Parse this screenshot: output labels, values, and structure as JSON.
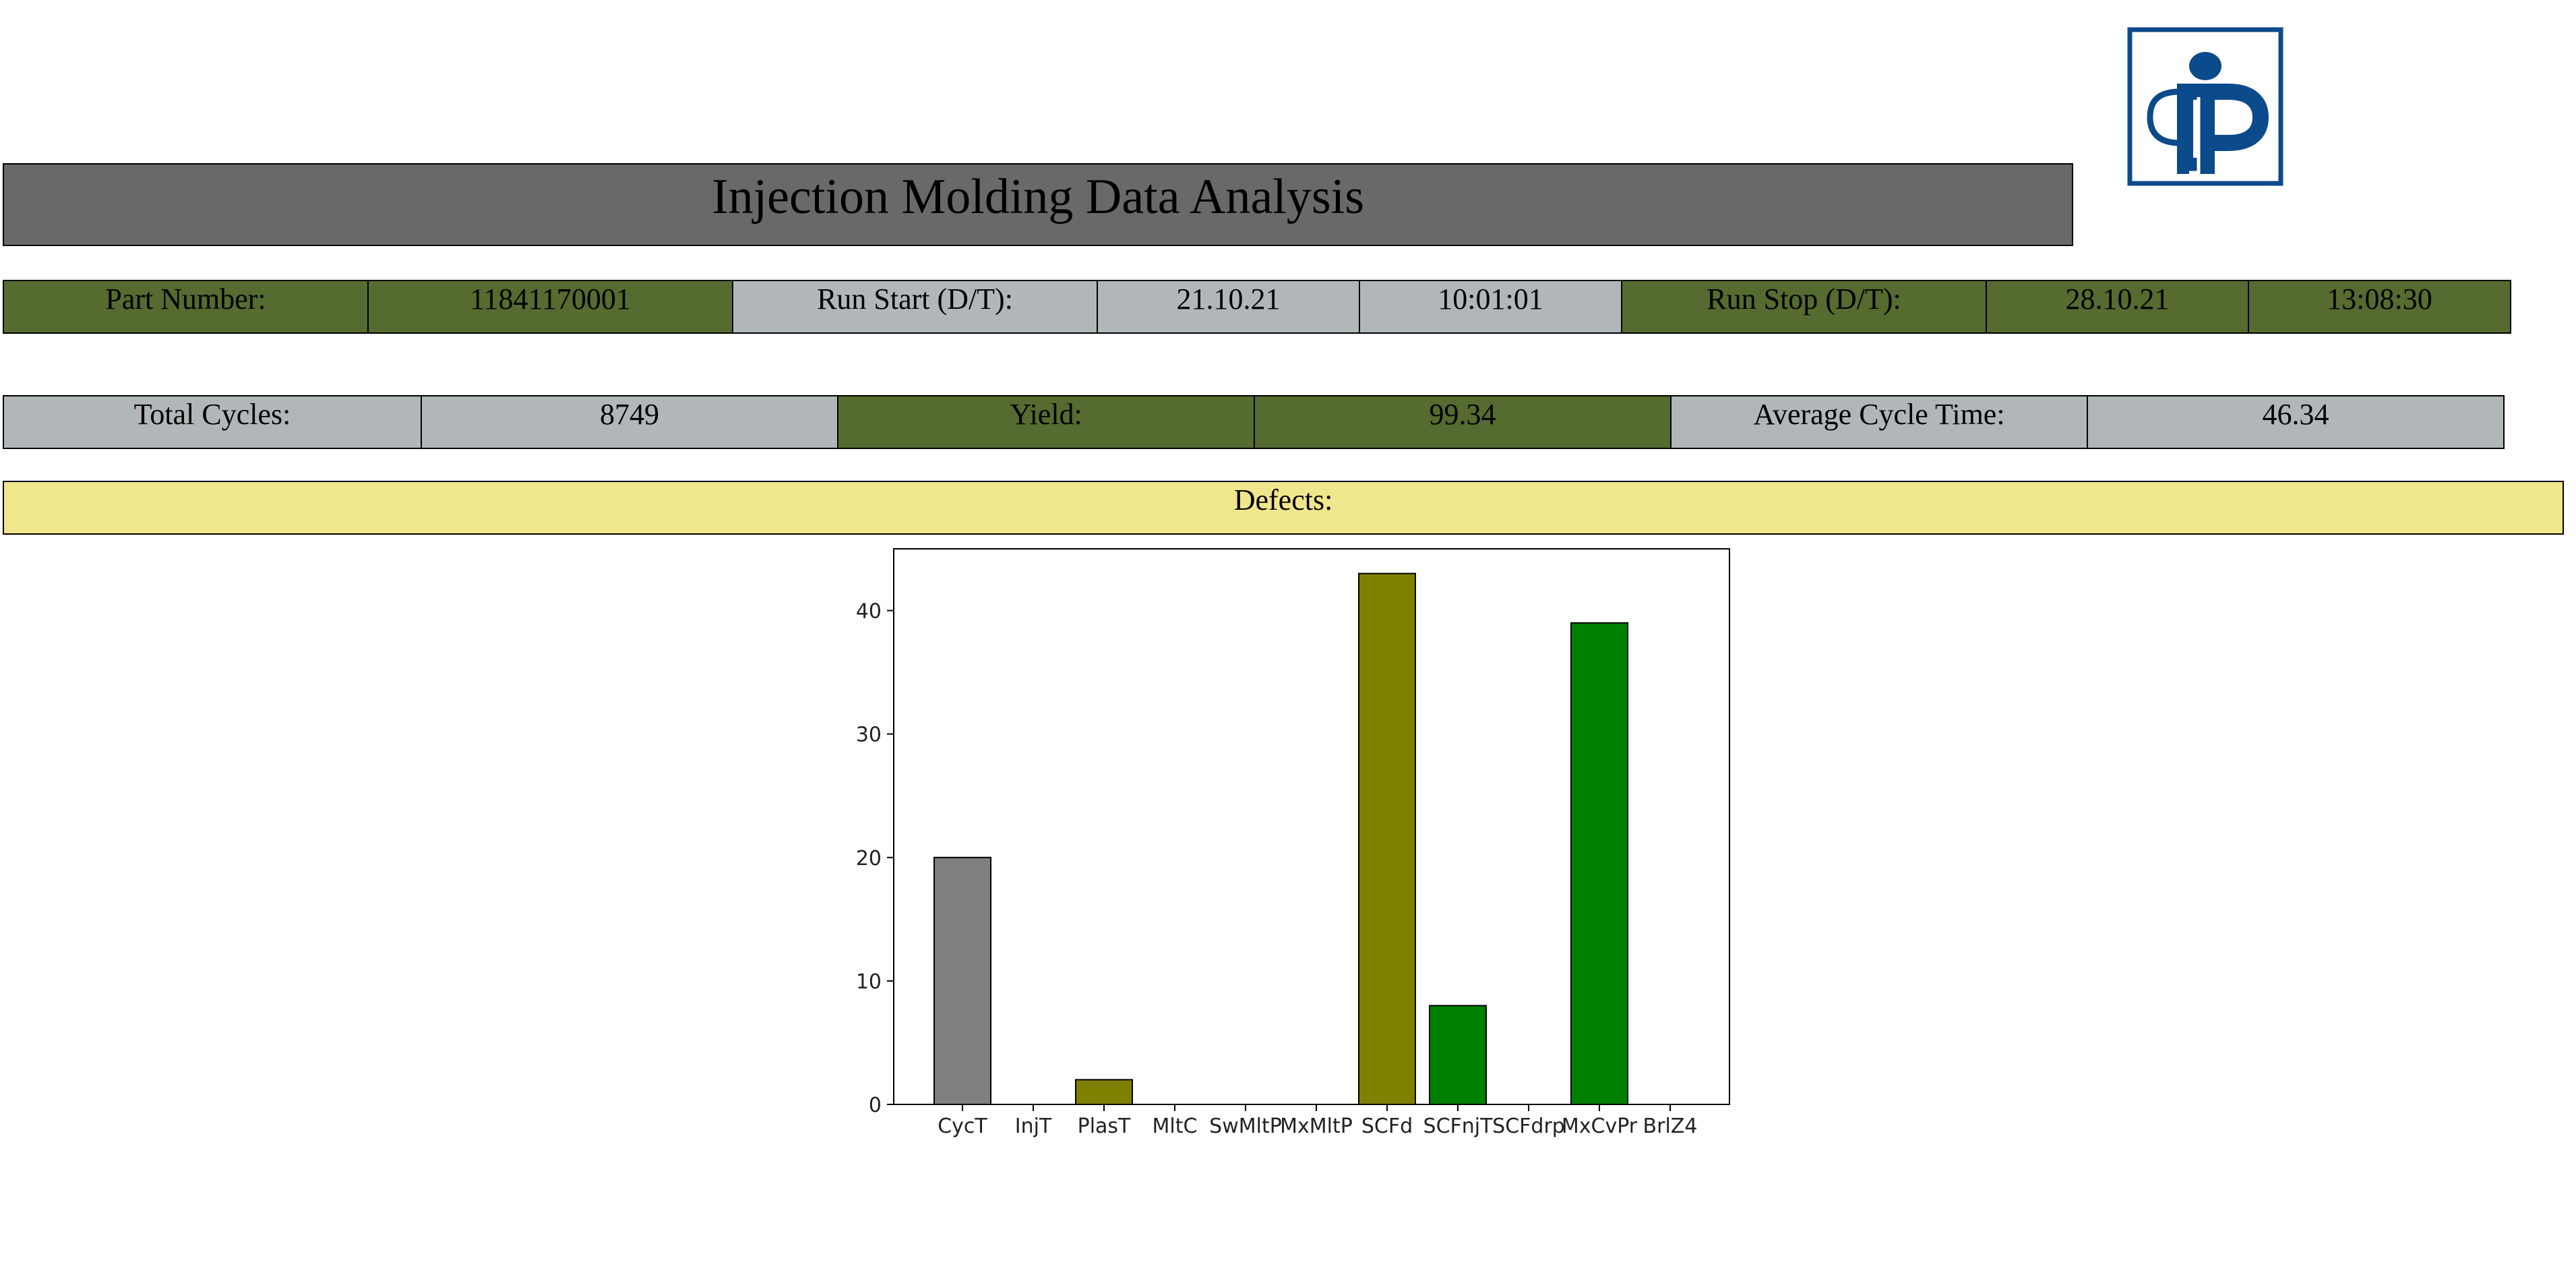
{
  "header": {
    "title": "Injection Molding Data Analysis",
    "logo_icon": "ip-monogram-logo-icon",
    "logo_color": "#0b4a8b"
  },
  "run_info": {
    "part_number_label": "Part Number:",
    "part_number": "11841170001",
    "run_start_label": "Run Start (D/T):",
    "run_start_date": "21.10.21",
    "run_start_time": "10:01:01",
    "run_stop_label": "Run Stop (D/T):",
    "run_stop_date": "28.10.21",
    "run_stop_time": "13:08:30"
  },
  "summary": {
    "total_cycles_label": "Total Cycles:",
    "total_cycles": "8749",
    "yield_label": "Yield:",
    "yield": "99.34",
    "avg_cycle_time_label": "Average Cycle Time:",
    "avg_cycle_time": "46.34"
  },
  "defects": {
    "label": "Defects:"
  },
  "colors": {
    "green_cell": "#556b2f",
    "grey_cell": "#b1b7b9",
    "title_bar": "#696969",
    "defects_bar": "#f0e68c"
  },
  "chart_data": {
    "type": "bar",
    "categories": [
      "CycT",
      "InjT",
      "PlasT",
      "MltC",
      "SwMltP",
      "MxMltP",
      "SCFd",
      "SCFnjT",
      "SCFdrp",
      "MxCvPr",
      "BrlZ4"
    ],
    "values": [
      20,
      0,
      2,
      0,
      0,
      0,
      43,
      8,
      0,
      39,
      0
    ],
    "bar_colors": [
      "#808080",
      "#808080",
      "#808000",
      "#808000",
      "#808000",
      "#808000",
      "#808000",
      "#008000",
      "#008000",
      "#008000",
      "#008000"
    ],
    "yticks": [
      0,
      10,
      20,
      30,
      40
    ],
    "ylim": [
      0,
      45
    ],
    "title": "",
    "xlabel": "",
    "ylabel": "",
    "grid": false,
    "legend": "none"
  }
}
